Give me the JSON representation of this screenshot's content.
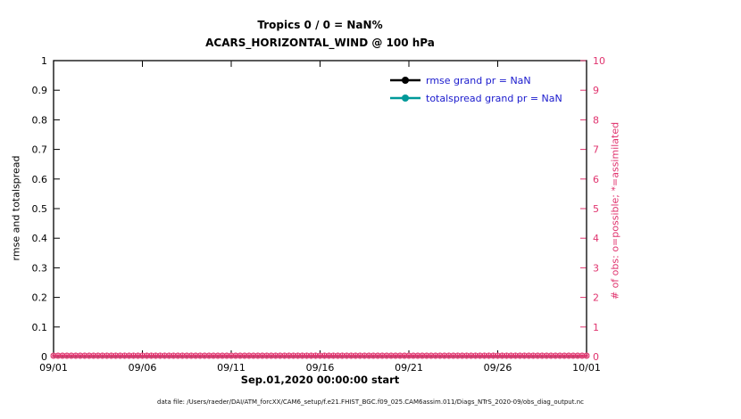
{
  "colors": {
    "obs_pink": "#E0336E",
    "rmse_black": "#000000",
    "totalspread_teal": "#009999",
    "legend_text_blue": "#1A1ACD",
    "axis_black": "#000000"
  },
  "chart_data": {
    "type": "line",
    "title": "Tropics 0 / 0 = NaN%",
    "subtitle": "ACARS_HORIZONTAL_WIND @ 100 hPa",
    "xlabel": "Sep.01,2020 00:00:00 start",
    "ylabel_left": "rmse and totalspread",
    "ylabel_right": "# of obs: o=possible; *=assimilated",
    "xticks": [
      "09/01",
      "09/06",
      "09/11",
      "09/16",
      "09/21",
      "09/26",
      "10/01"
    ],
    "xlim_days": [
      0,
      30
    ],
    "ylim_left": [
      0,
      1
    ],
    "yticks_left": [
      "0",
      "0.1",
      "0.2",
      "0.3",
      "0.4",
      "0.5",
      "0.6",
      "0.7",
      "0.8",
      "0.9",
      "1"
    ],
    "ylim_right": [
      0,
      10
    ],
    "yticks_right": [
      "0",
      "1",
      "2",
      "3",
      "4",
      "5",
      "6",
      "7",
      "8",
      "9",
      "10"
    ],
    "grid": false,
    "legend_position": "top-right-inside",
    "series": [
      {
        "name": "rmse",
        "legend_label": "rmse grand pr = NaN",
        "color": "#000000",
        "grand_mean": "NaN",
        "values": []
      },
      {
        "name": "totalspread",
        "legend_label": "totalspread grand pr = NaN",
        "color": "#009999",
        "grand_mean": "NaN",
        "values": []
      },
      {
        "name": "obs-possible",
        "marker": "o",
        "color": "#E0336E",
        "value_constant": 0,
        "n_points": 121
      },
      {
        "name": "obs-assimilated",
        "marker": "*",
        "color": "#E0336E",
        "value_constant": 0,
        "n_points": 121
      }
    ],
    "caption": "data file: /Users/raeder/DAI/ATM_forcXX/CAM6_setup/f.e21.FHIST_BGC.f09_025.CAM6assim.011/Diags_NTrS_2020-09/obs_diag_output.nc"
  }
}
